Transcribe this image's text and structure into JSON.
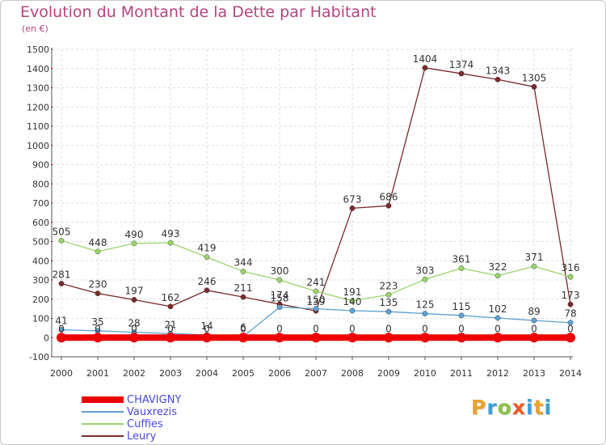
{
  "header": {
    "title": "Evolution du Montant de la Dette par Habitant",
    "subtitle": "(en €)"
  },
  "logo": {
    "text": "Proxiti"
  },
  "chart_data": {
    "type": "line",
    "title": "Evolution du Montant de la Dette par Habitant",
    "ylabel": "(en €)",
    "xlabel": "",
    "x": [
      "2000",
      "2001",
      "2002",
      "2003",
      "2004",
      "2005",
      "2006",
      "2007",
      "2008",
      "2009",
      "2010",
      "2011",
      "2012",
      "2013",
      "2014"
    ],
    "ylim": [
      -100,
      1500
    ],
    "yticks": [
      -100,
      0,
      100,
      200,
      300,
      400,
      500,
      600,
      700,
      800,
      900,
      1000,
      1100,
      1200,
      1300,
      1400,
      1500
    ],
    "grid": true,
    "legend_position": "bottom-left",
    "series": [
      {
        "name": "CHAVIGNY",
        "color": "#ee0000",
        "labels": [
          "0",
          "0",
          "0",
          "0",
          "0",
          "0",
          "0",
          "0",
          "0",
          "0",
          "0",
          "0",
          "0",
          "0",
          "0"
        ],
        "values": [
          0,
          0,
          0,
          0,
          0,
          0,
          0,
          0,
          0,
          0,
          0,
          0,
          0,
          0,
          0
        ]
      },
      {
        "name": "Vauxrezis",
        "color": "#5fa0d0",
        "labels": [
          "41",
          "35",
          "28",
          "21",
          "14",
          "6",
          "158",
          "150",
          "140",
          "135",
          "125",
          "115",
          "102",
          "89",
          "78"
        ],
        "values": [
          41,
          35,
          28,
          21,
          14,
          6,
          158,
          150,
          140,
          135,
          125,
          115,
          102,
          89,
          78
        ]
      },
      {
        "name": "Cuffies",
        "color": "#9bd46a",
        "labels": [
          "505",
          "448",
          "490",
          "493",
          "419",
          "344",
          "300",
          "241",
          "191",
          "223",
          "303",
          "361",
          "322",
          "371",
          "316"
        ],
        "values": [
          505,
          448,
          490,
          493,
          419,
          344,
          300,
          241,
          191,
          223,
          303,
          361,
          322,
          371,
          316
        ]
      },
      {
        "name": "Leury",
        "color": "#7a2a2a",
        "labels": [
          "281",
          "230",
          "197",
          "162",
          "246",
          "211",
          "174",
          "139",
          "673",
          "686",
          "1404",
          "1374",
          "1343",
          "1305",
          "173"
        ],
        "values": [
          281,
          230,
          197,
          162,
          246,
          211,
          174,
          139,
          673,
          686,
          1404,
          1374,
          1343,
          1305,
          173
        ]
      }
    ]
  }
}
